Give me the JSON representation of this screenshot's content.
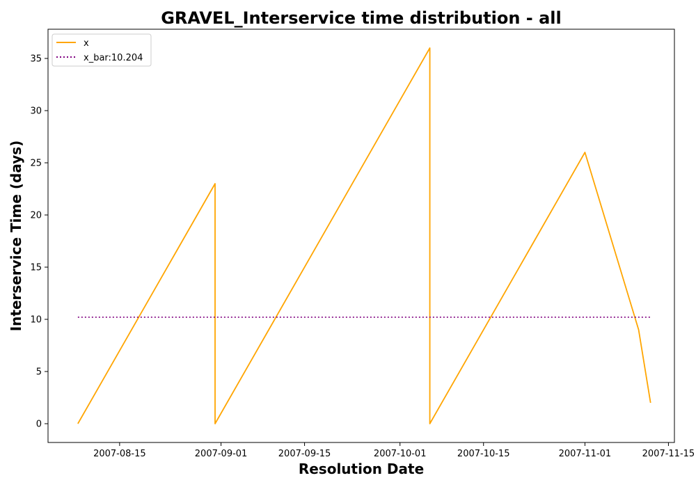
{
  "chart_data": {
    "type": "line",
    "title": "GRAVEL_Interservice time distribution - all",
    "xlabel": "Resolution Date",
    "ylabel": "Interservice Time (days)",
    "x_ticks": [
      "2007-08-15",
      "2007-09-01",
      "2007-09-15",
      "2007-10-01",
      "2007-10-15",
      "2007-11-01",
      "2007-11-15"
    ],
    "y_ticks": [
      0,
      5,
      10,
      15,
      20,
      25,
      30,
      35
    ],
    "xlim": [
      "2007-08-03",
      "2007-11-16"
    ],
    "ylim": [
      -1.8,
      37.8
    ],
    "grid": false,
    "legend_position": "top-left",
    "series": [
      {
        "name": "x",
        "color": "#FFA500",
        "style": "solid",
        "x": [
          "2007-08-08",
          "2007-08-31",
          "2007-08-31",
          "2007-10-06",
          "2007-10-06",
          "2007-11-01",
          "2007-11-10",
          "2007-11-12"
        ],
        "y": [
          0,
          23,
          0,
          36,
          0,
          26,
          9,
          2
        ]
      },
      {
        "name": "x_bar:10.204",
        "color": "#800080",
        "style": "dotted",
        "x": [
          "2007-08-08",
          "2007-11-12"
        ],
        "y": [
          10.204,
          10.204
        ]
      }
    ]
  }
}
